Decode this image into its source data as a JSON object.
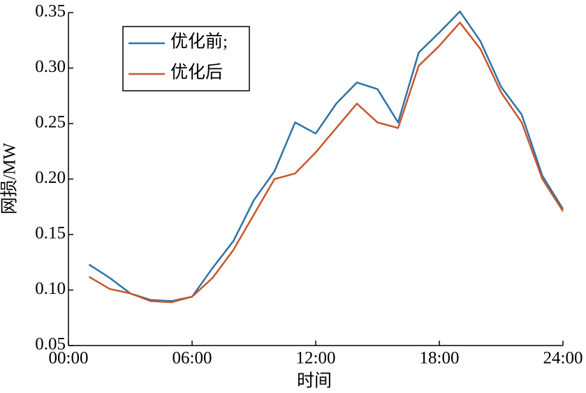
{
  "chart_data": {
    "type": "line",
    "xlabel": "时间",
    "ylabel": "网损/MW",
    "x": [
      1,
      2,
      3,
      4,
      5,
      6,
      7,
      8,
      9,
      10,
      11,
      12,
      13,
      14,
      15,
      16,
      17,
      18,
      19,
      20,
      21,
      22,
      23,
      24
    ],
    "series": [
      {
        "name": "优化前;",
        "color": "#2e72a8",
        "values": [
          0.123,
          0.111,
          0.097,
          0.091,
          0.09,
          0.094,
          0.12,
          0.144,
          0.181,
          0.207,
          0.251,
          0.241,
          0.268,
          0.287,
          0.281,
          0.251,
          0.314,
          0.332,
          0.351,
          0.324,
          0.283,
          0.258,
          0.203,
          0.173
        ]
      },
      {
        "name": "优化后",
        "color": "#c9562a",
        "values": [
          0.112,
          0.101,
          0.097,
          0.09,
          0.089,
          0.094,
          0.111,
          0.136,
          0.168,
          0.2,
          0.205,
          0.224,
          0.246,
          0.268,
          0.251,
          0.246,
          0.302,
          0.32,
          0.341,
          0.317,
          0.278,
          0.251,
          0.2,
          0.171
        ]
      }
    ],
    "xlim": [
      0,
      24
    ],
    "xticks": [
      {
        "value": 0,
        "label": "00:00"
      },
      {
        "value": 6,
        "label": "06:00"
      },
      {
        "value": 12,
        "label": "12:00"
      },
      {
        "value": 18,
        "label": "18:00"
      },
      {
        "value": 24,
        "label": "24:00"
      }
    ],
    "ylim": [
      0.05,
      0.35
    ],
    "yticks": [
      0.05,
      {
        "value": 0.1,
        "label": "0.10"
      },
      0.15,
      {
        "value": 0.2,
        "label": "0.20"
      },
      0.25,
      {
        "value": 0.3,
        "label": "0.30"
      },
      0.35
    ],
    "legend": "upper left"
  }
}
